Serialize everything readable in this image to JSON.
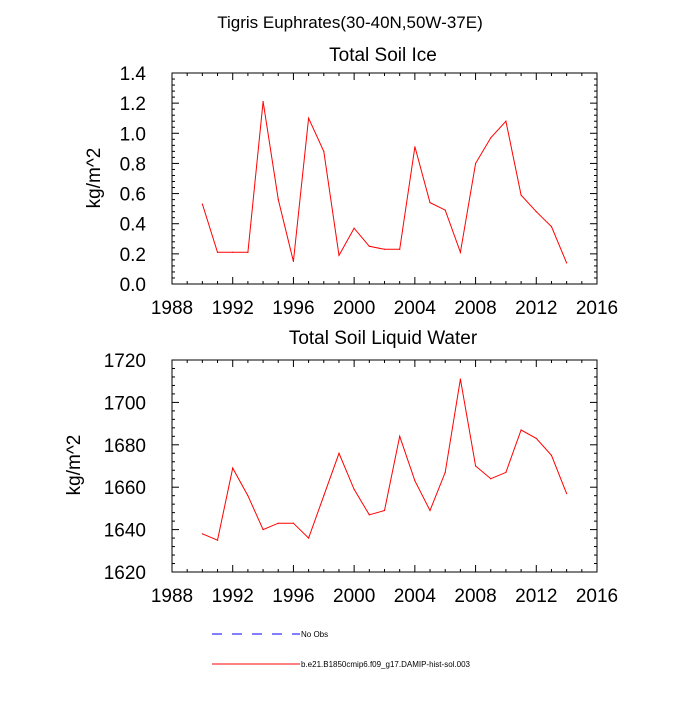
{
  "figure_title": "Tigris Euphrates(30-40N,50W-37E)",
  "colors": {
    "model": "#ff0000",
    "obs": "#0000ff"
  },
  "legend": [
    {
      "label": "No Obs",
      "color": "#0000ff",
      "style": "dashed"
    },
    {
      "label": "b.e21.B1850cmip6.f09_g17.DAMIP-hist-sol.003",
      "color": "#ff0000",
      "style": "solid"
    }
  ],
  "chart_data": [
    {
      "type": "line",
      "title": "Total Soil Ice",
      "xlabel": "",
      "ylabel": "kg/m^2",
      "xlim": [
        1988,
        2016
      ],
      "ylim": [
        0.0,
        1.4
      ],
      "xticks": [
        1988,
        1992,
        1996,
        2000,
        2004,
        2008,
        2012,
        2016
      ],
      "yticks": [
        "0.0",
        "0.2",
        "0.4",
        "0.6",
        "0.8",
        "1.0",
        "1.2",
        "1.4"
      ],
      "x": [
        1990,
        1991,
        1992,
        1993,
        1994,
        1995,
        1996,
        1997,
        1998,
        1999,
        2000,
        2001,
        2002,
        2003,
        2004,
        2005,
        2006,
        2007,
        2008,
        2009,
        2010,
        2011,
        2012,
        2013,
        2014
      ],
      "series": [
        {
          "name": "b.e21.B1850cmip6.f09_g17.DAMIP-hist-sol.003",
          "values": [
            0.53,
            0.21,
            0.21,
            0.21,
            1.21,
            0.56,
            0.15,
            1.1,
            0.88,
            0.19,
            0.37,
            0.25,
            0.23,
            0.23,
            0.91,
            0.54,
            0.49,
            0.21,
            0.8,
            0.97,
            1.08,
            0.59,
            0.48,
            0.38,
            0.14
          ]
        }
      ]
    },
    {
      "type": "line",
      "title": "Total Soil Liquid Water",
      "xlabel": "",
      "ylabel": "kg/m^2",
      "xlim": [
        1988,
        2016
      ],
      "ylim": [
        1620,
        1720
      ],
      "xticks": [
        1988,
        1992,
        1996,
        2000,
        2004,
        2008,
        2012,
        2016
      ],
      "yticks": [
        "1620",
        "1640",
        "1660",
        "1680",
        "1700",
        "1720"
      ],
      "x": [
        1990,
        1991,
        1992,
        1993,
        1994,
        1995,
        1996,
        1997,
        1998,
        1999,
        2000,
        2001,
        2002,
        2003,
        2004,
        2005,
        2006,
        2007,
        2008,
        2009,
        2010,
        2011,
        2012,
        2013,
        2014
      ],
      "series": [
        {
          "name": "b.e21.B1850cmip6.f09_g17.DAMIP-hist-sol.003",
          "values": [
            1638,
            1635,
            1669,
            1656,
            1640,
            1643,
            1643,
            1636,
            1656,
            1676,
            1659,
            1647,
            1649,
            1684,
            1663,
            1649,
            1667,
            1711,
            1670,
            1664,
            1667,
            1687,
            1683,
            1675,
            1657
          ]
        }
      ]
    }
  ]
}
